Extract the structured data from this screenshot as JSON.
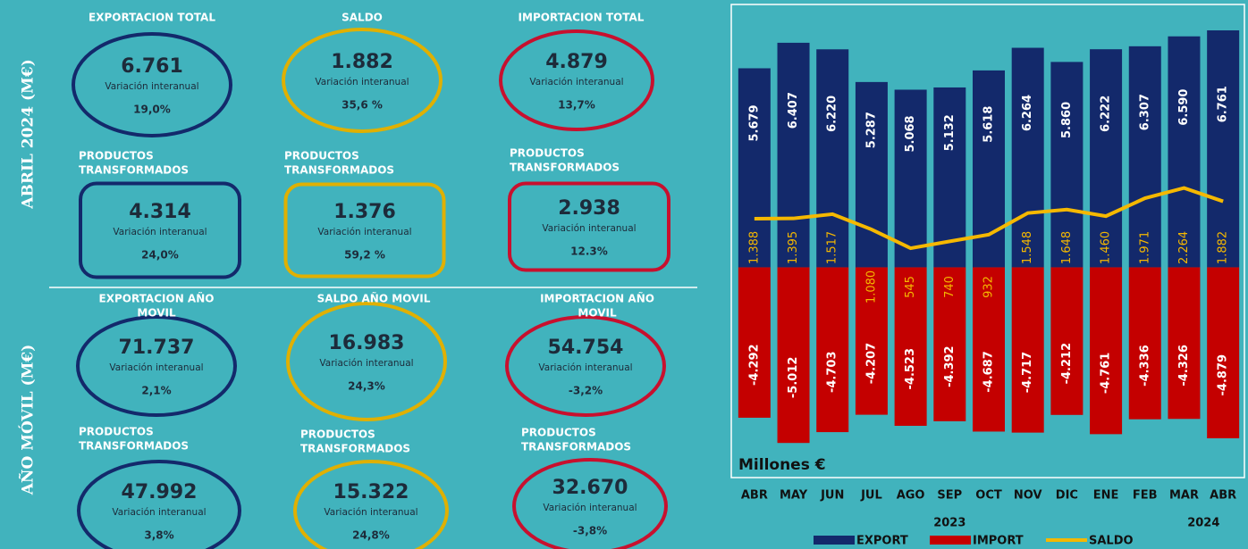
{
  "panels": {
    "side_labels": [
      "ABRIL 2024 (M€)",
      "AÑO MÓVIL (M€)"
    ],
    "cards": [
      {
        "title": [
          "EXPORTACION TOTAL"
        ],
        "value": "6.761",
        "label": "Variación interanual",
        "change": "19,0%"
      },
      {
        "title": [
          "SALDO"
        ],
        "value": "1.882",
        "label": "Variación interanual",
        "change": "35,6 %"
      },
      {
        "title": [
          "IMPORTACION TOTAL"
        ],
        "value": "4.879",
        "label": "Variación interanual",
        "change": "13,7%"
      },
      {
        "title": [
          "PRODUCTOS",
          "TRANSFORMADOS"
        ],
        "value": "4.314",
        "label": "Variación interanual",
        "change": "24,0%"
      },
      {
        "title": [
          "PRODUCTOS",
          "TRANSFORMADOS"
        ],
        "value": "1.376",
        "label": "Variación interanual",
        "change": "59,2 %"
      },
      {
        "title": [
          "PRODUCTOS",
          "TRANSFORMADOS"
        ],
        "value": "2.938",
        "label": "Variación interanual",
        "change": "12.3%"
      },
      {
        "title": [
          "EXPORTACION AÑO",
          "MOVIL"
        ],
        "value": "71.737",
        "label": "Variación interanual",
        "change": "2,1%"
      },
      {
        "title": [
          "SALDO AÑO MOVIL"
        ],
        "value": "16.983",
        "label": "Variación interanual",
        "change": "24,3%"
      },
      {
        "title": [
          "IMPORTACION AÑO",
          "MOVIL"
        ],
        "value": "54.754",
        "label": "Variación interanual",
        "change": "-3,2%"
      },
      {
        "title": [
          "PRODUCTOS",
          "TRANSFORMADOS"
        ],
        "value": "47.992",
        "label": "Variación interanual",
        "change": "3,8%"
      },
      {
        "title": [
          "PRODUCTOS",
          "TRANSFORMADOS"
        ],
        "value": "15.322",
        "label": "Variación interanual",
        "change": "24,8%"
      },
      {
        "title": [
          "PRODUCTOS",
          "TRANSFORMADOS"
        ],
        "value": "32.670",
        "label": "Variación interanual",
        "change": "-3,8%"
      }
    ]
  },
  "chart_data": {
    "type": "bar",
    "unit_label": "Millones €",
    "categories": [
      "ABR",
      "MAY",
      "JUN",
      "JUL",
      "AGO",
      "SEP",
      "OCT",
      "NOV",
      "DIC",
      "ENE",
      "FEB",
      "MAR",
      "ABR"
    ],
    "year_labels": [
      "2023",
      "2024"
    ],
    "ylim": [
      -6000,
      7500
    ],
    "series": [
      {
        "name": "EXPORT",
        "color": "#13296b",
        "values": [
          5679,
          6407,
          6220,
          5287,
          5068,
          5132,
          5618,
          6264,
          5860,
          6222,
          6307,
          6590,
          6761
        ],
        "value_labels": [
          "5.679",
          "6.407",
          "6.220",
          "5.287",
          "5.068",
          "5.132",
          "5.618",
          "6.264",
          "5.860",
          "6.222",
          "6.307",
          "6.590",
          "6.761"
        ]
      },
      {
        "name": "IMPORT",
        "color": "#c40000",
        "values": [
          -4292,
          -5012,
          -4703,
          -4207,
          -4523,
          -4392,
          -4687,
          -4717,
          -4212,
          -4761,
          -4336,
          -4326,
          -4879
        ],
        "value_labels": [
          "-4.292",
          "-5.012",
          "-4.703",
          "-4.207",
          "-4.523",
          "-4.392",
          "-4.687",
          "-4.717",
          "-4.212",
          "-4.761",
          "-4.336",
          "-4.326",
          "-4.879"
        ]
      },
      {
        "name": "SALDO",
        "type": "line",
        "color": "#f5b800",
        "values": [
          1388,
          1395,
          1517,
          1080,
          545,
          740,
          932,
          1548,
          1648,
          1460,
          1971,
          2264,
          1882
        ],
        "value_labels": [
          "1.388",
          "1.395",
          "1.517",
          "1.080",
          "545",
          "740",
          "932",
          "1.548",
          "1.648",
          "1.460",
          "1.971",
          "2.264",
          "1.882"
        ]
      }
    ]
  }
}
